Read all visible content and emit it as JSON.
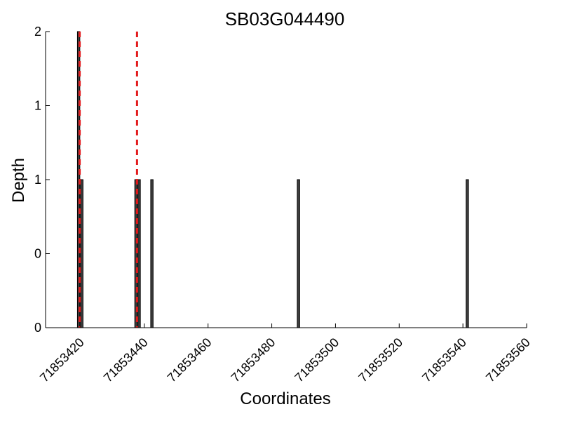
{
  "chart_data": {
    "type": "bar",
    "title": "SB03G044490",
    "xlabel": "Coordinates",
    "ylabel": "Depth",
    "xlim": [
      71853409,
      71853560
    ],
    "ylim": [
      0,
      2
    ],
    "x_ticks": [
      {
        "value": 71853420,
        "label": "71853420"
      },
      {
        "value": 71853440,
        "label": "71853440"
      },
      {
        "value": 71853460,
        "label": "71853460"
      },
      {
        "value": 71853480,
        "label": "71853480"
      },
      {
        "value": 71853500,
        "label": "71853500"
      },
      {
        "value": 71853520,
        "label": "71853520"
      },
      {
        "value": 71853540,
        "label": "71853540"
      },
      {
        "value": 71853560,
        "label": "71853560"
      }
    ],
    "y_ticks": [
      {
        "value": 0,
        "label": "0"
      },
      {
        "value": 0.5,
        "label": "0"
      },
      {
        "value": 1,
        "label": "1"
      },
      {
        "value": 1.5,
        "label": "1"
      },
      {
        "value": 2,
        "label": "2"
      }
    ],
    "bars": [
      {
        "x": 71853419,
        "depth": 2
      },
      {
        "x": 71853420,
        "depth": 1
      },
      {
        "x": 71853437,
        "depth": 1
      },
      {
        "x": 71853438,
        "depth": 1
      },
      {
        "x": 71853442,
        "depth": 1
      },
      {
        "x": 71853488,
        "depth": 1
      },
      {
        "x": 71853541,
        "depth": 1
      }
    ],
    "markers": [
      71853419.7,
      71853437.7
    ],
    "colors": {
      "bar": "#404040",
      "bar_edge": "#000000",
      "marker": "#e31a1c"
    },
    "grid": false
  }
}
